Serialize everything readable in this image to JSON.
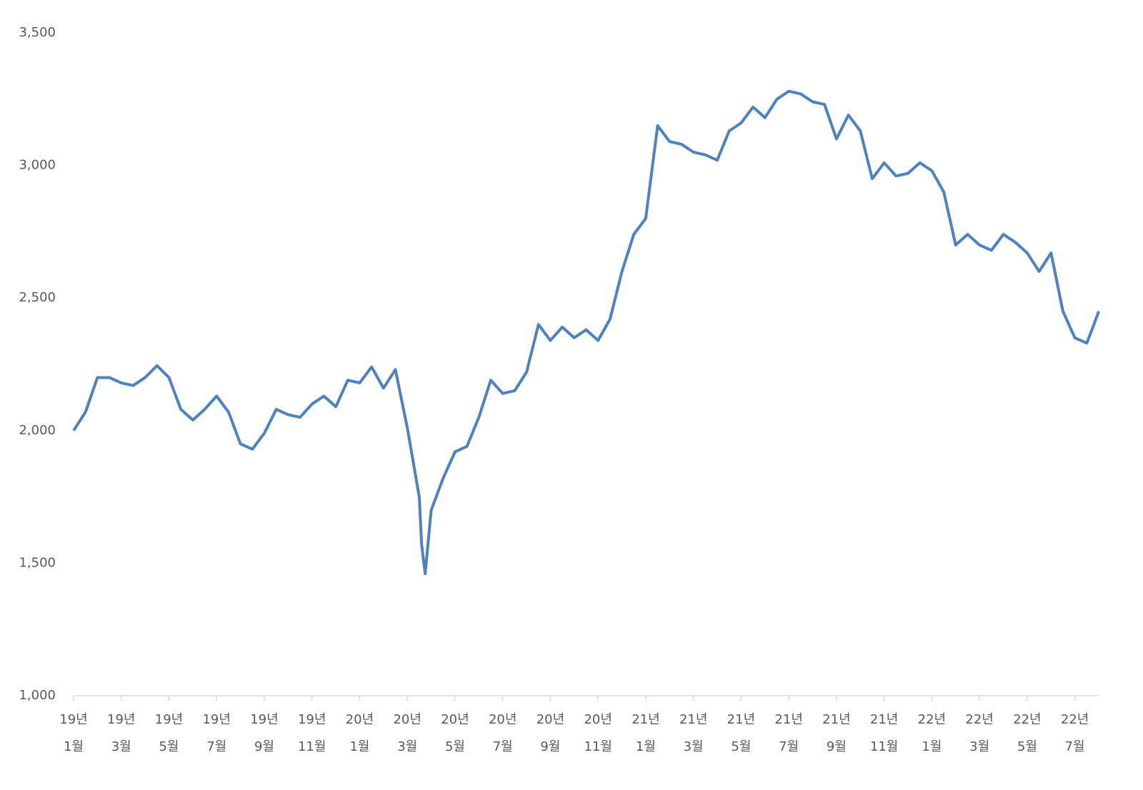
{
  "chart_data": {
    "type": "line",
    "x": [
      0,
      0.5,
      1,
      1.5,
      2,
      2.5,
      3,
      3.5,
      4,
      4.5,
      5,
      5.5,
      6,
      6.5,
      7,
      7.5,
      8,
      8.5,
      9,
      9.5,
      10,
      10.5,
      11,
      11.5,
      12,
      12.5,
      13,
      13.5,
      14,
      14.5,
      14.6,
      14.75,
      15,
      15.5,
      16,
      16.5,
      17,
      17.5,
      18,
      18.5,
      19,
      19.5,
      20,
      20.5,
      21,
      21.5,
      22,
      22.5,
      23,
      23.5,
      24,
      24.5,
      25,
      25.5,
      26,
      26.5,
      27,
      27.5,
      28,
      28.5,
      29,
      29.5,
      30,
      30.5,
      31,
      31.5,
      32,
      32.5,
      33,
      33.5,
      34,
      34.5,
      35,
      35.5,
      36,
      36.5,
      37,
      37.5,
      38,
      38.5,
      39,
      39.5,
      40,
      40.5,
      41,
      41.5,
      42,
      42.5,
      42.8,
      43
    ],
    "series": [
      {
        "color": "#4f81bd",
        "values": [
          2000,
          2070,
          2200,
          2200,
          2180,
          2170,
          2200,
          2245,
          2200,
          2080,
          2040,
          2080,
          2130,
          2070,
          1950,
          1930,
          1990,
          2080,
          2060,
          2050,
          2100,
          2130,
          2090,
          2190,
          2180,
          2240,
          2160,
          2230,
          2010,
          1750,
          1570,
          1460,
          1700,
          1820,
          1920,
          1940,
          2050,
          2190,
          2140,
          2150,
          2220,
          2400,
          2340,
          2390,
          2350,
          2380,
          2340,
          2420,
          2600,
          2740,
          2800,
          3150,
          3090,
          3080,
          3050,
          3040,
          3020,
          3130,
          3160,
          3220,
          3180,
          3250,
          3280,
          3270,
          3240,
          3230,
          3100,
          3190,
          3130,
          2950,
          3010,
          2960,
          2970,
          3010,
          2980,
          2900,
          2700,
          2740,
          2700,
          2680,
          2740,
          2710,
          2670,
          2600,
          2670,
          2450,
          2350,
          2330,
          2400,
          2450
        ]
      }
    ],
    "xlim": [
      0,
      43
    ],
    "xticks": [
      {
        "value": 0,
        "label": "19년 1월"
      },
      {
        "value": 2,
        "label": "19년 3월"
      },
      {
        "value": 4,
        "label": "19년 5월"
      },
      {
        "value": 6,
        "label": "19년 7월"
      },
      {
        "value": 8,
        "label": "19년 9월"
      },
      {
        "value": 10,
        "label": "19년 11월"
      },
      {
        "value": 12,
        "label": "20년 1월"
      },
      {
        "value": 14,
        "label": "20년 3월"
      },
      {
        "value": 16,
        "label": "20년 5월"
      },
      {
        "value": 18,
        "label": "20년 7월"
      },
      {
        "value": 20,
        "label": "20년 9월"
      },
      {
        "value": 22,
        "label": "20년 11월"
      },
      {
        "value": 24,
        "label": "21년 1월"
      },
      {
        "value": 26,
        "label": "21년 3월"
      },
      {
        "value": 28,
        "label": "21년 5월"
      },
      {
        "value": 30,
        "label": "21년 7월"
      },
      {
        "value": 32,
        "label": "21년 9월"
      },
      {
        "value": 34,
        "label": "21년 11월"
      },
      {
        "value": 36,
        "label": "22년 1월"
      },
      {
        "value": 38,
        "label": "22년 3월"
      },
      {
        "value": 40,
        "label": "22년 5월"
      },
      {
        "value": 42,
        "label": "22년 7월"
      }
    ],
    "ylim": [
      1000,
      3500
    ],
    "yticks": [
      {
        "value": 1000,
        "label": "1,000"
      },
      {
        "value": 1500,
        "label": "1,500"
      },
      {
        "value": 2000,
        "label": "2,000"
      },
      {
        "value": 2500,
        "label": "2,500"
      },
      {
        "value": 3000,
        "label": "3,000"
      },
      {
        "value": 3500,
        "label": "3,500"
      }
    ],
    "grid": false
  }
}
